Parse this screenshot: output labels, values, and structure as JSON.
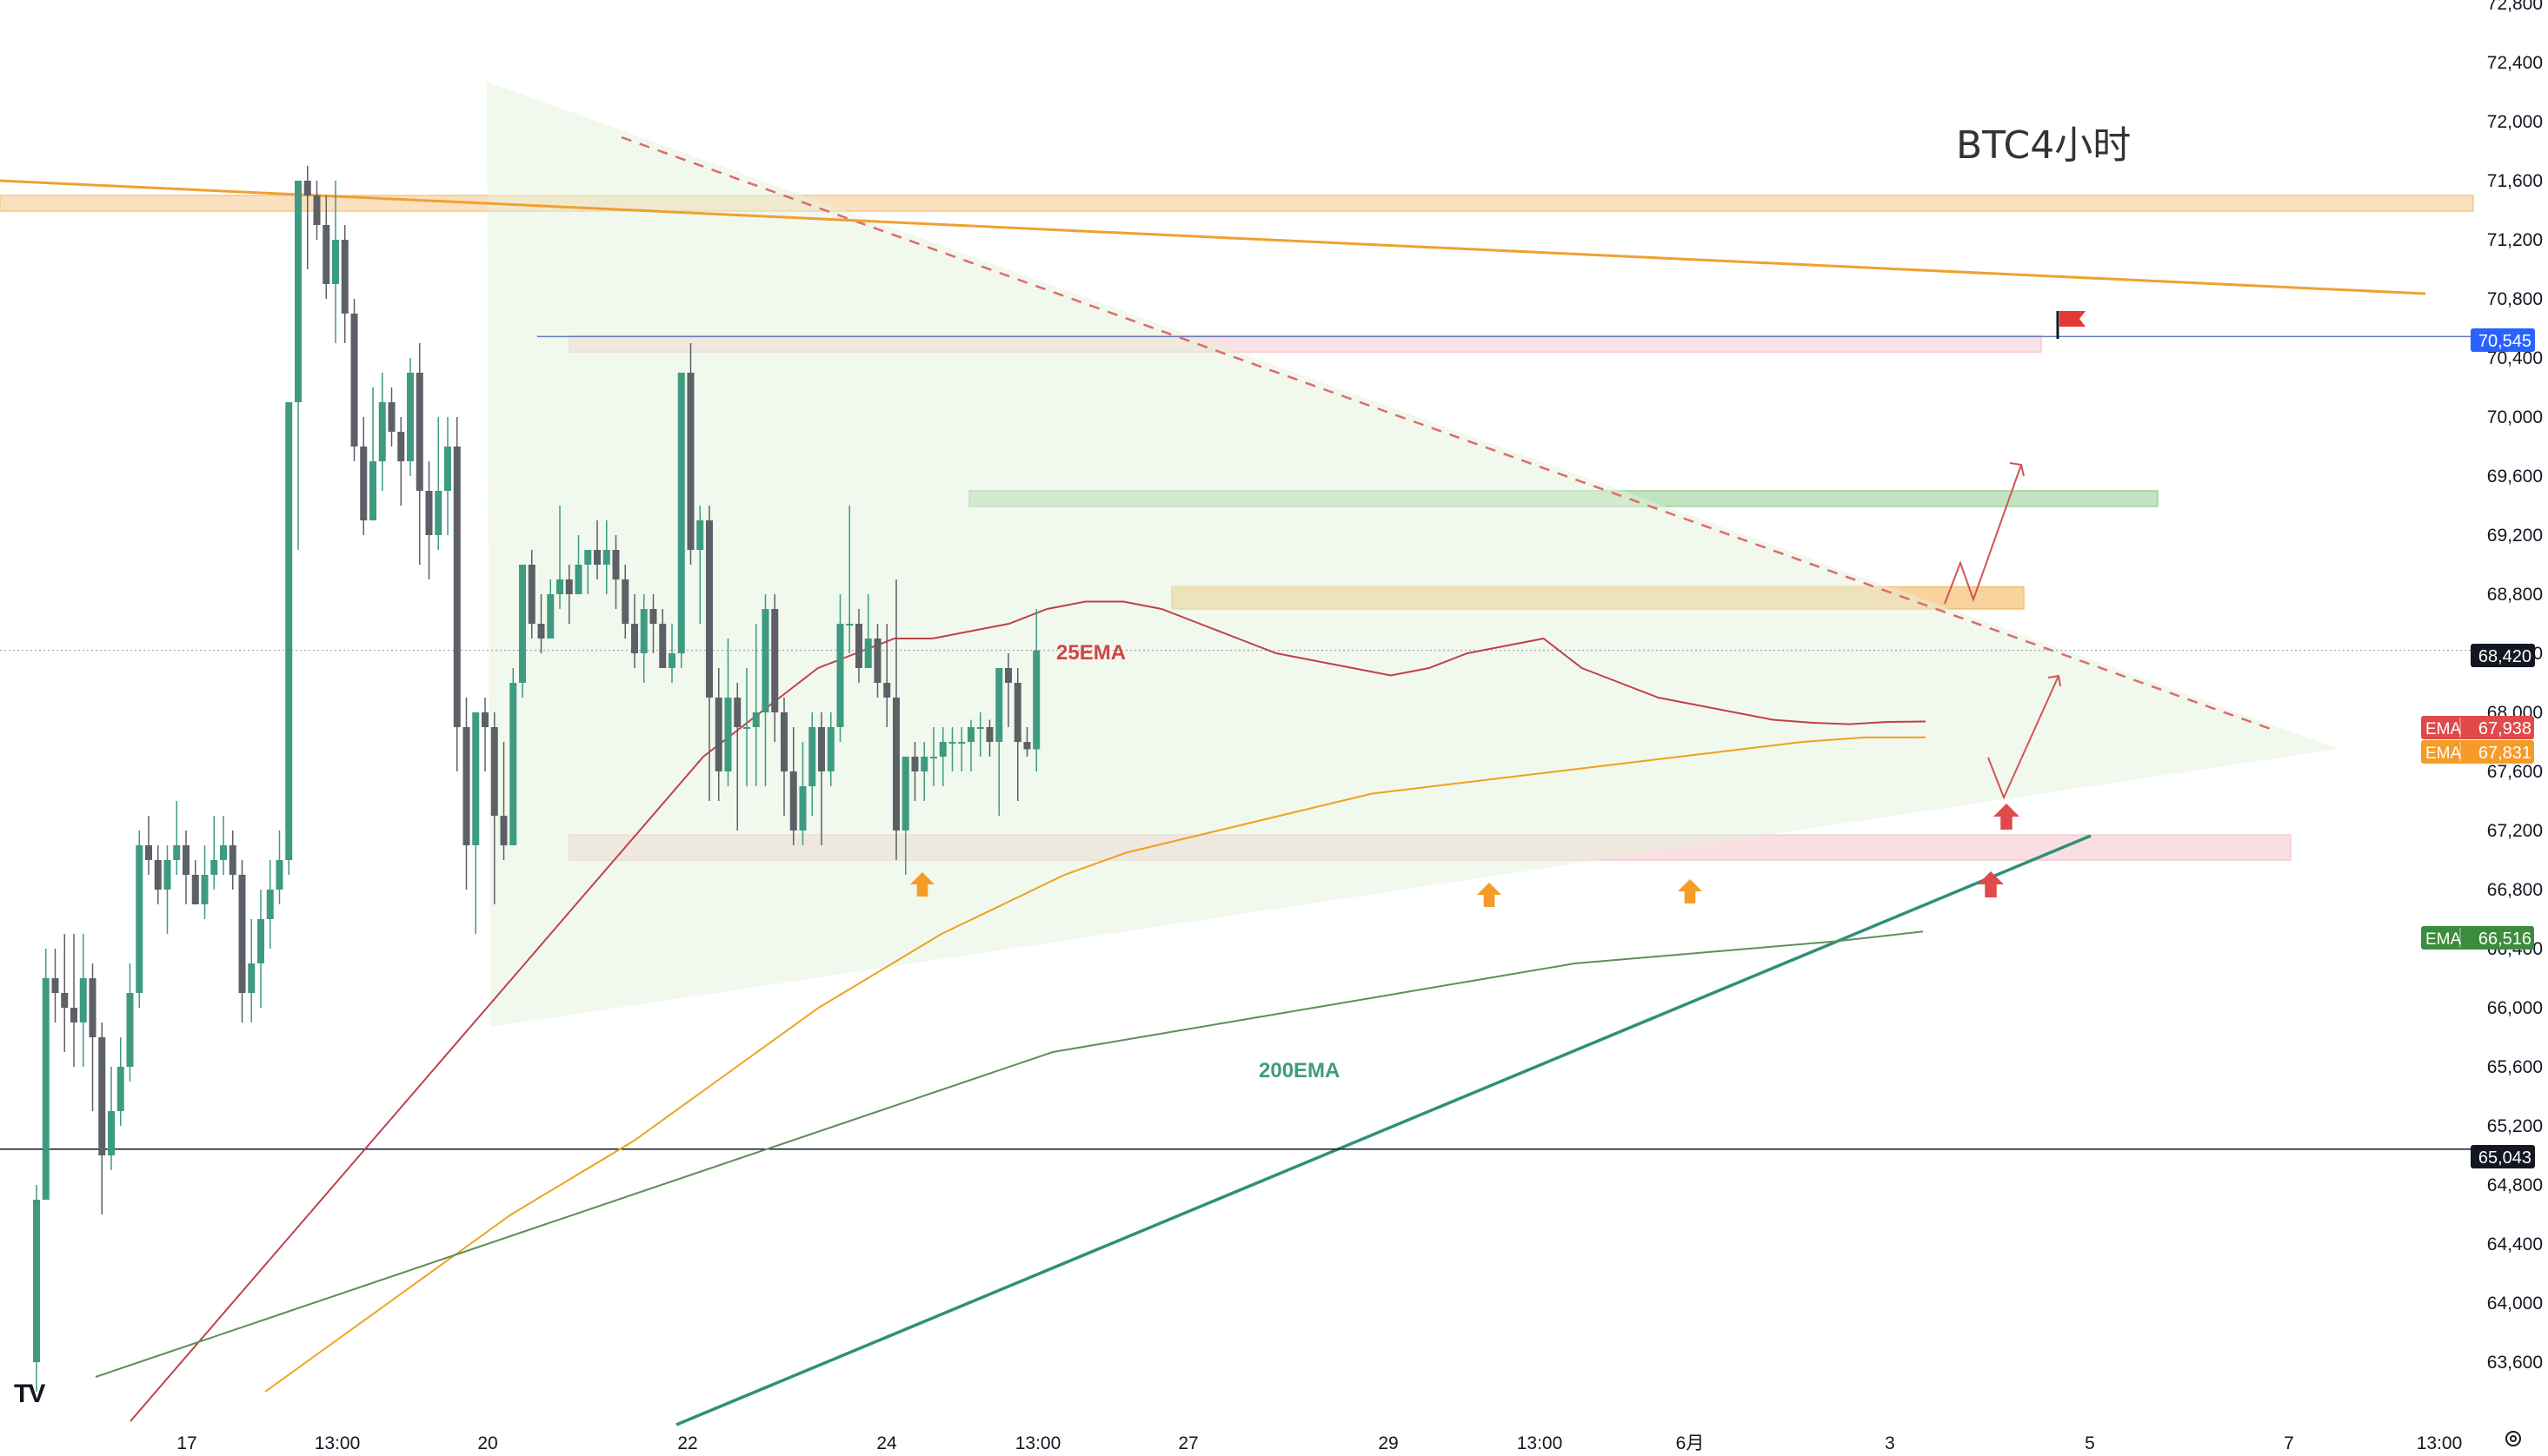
{
  "title": "BTC4小时",
  "colors": {
    "up": "#3e9b82",
    "down": "#5d6066",
    "ema25": "#c0404a",
    "ema_mid": "#f0a020",
    "ema200": "#5e8f5a",
    "teal_trend": "#2e8f7a",
    "orange_trend": "#f0a030",
    "badge_blue": "#2962ff",
    "badge_black": "#131722",
    "badge_red": "#e04a4a",
    "badge_orange": "#f59b27",
    "badge_green": "#3d8b3d"
  },
  "annotations": {
    "ema25_label": "25EMA",
    "ema200_label": "200EMA"
  },
  "logo_text": "TV",
  "price_axis": {
    "labels": [
      "72,800",
      "72,400",
      "72,000",
      "71,600",
      "71,200",
      "70,800",
      "70,400",
      "70,000",
      "69,600",
      "69,200",
      "68,800",
      "68,400",
      "68,000",
      "67,600",
      "67,200",
      "66,800",
      "66,400",
      "66,000",
      "65,600",
      "65,200",
      "64,800",
      "64,400",
      "64,000",
      "63,600"
    ]
  },
  "time_axis": {
    "labels": [
      "17",
      "13:00",
      "20",
      "22",
      "24",
      "13:00",
      "27",
      "29",
      "13:00",
      "6月",
      "3",
      "5",
      "7",
      "13:00"
    ]
  },
  "price_badges": [
    {
      "key": "alert",
      "label": "",
      "value": "70,545",
      "color": "#2962ff"
    },
    {
      "key": "last",
      "label": "",
      "value": "68,420",
      "color": "#131722"
    },
    {
      "key": "ema25",
      "label": "EMA",
      "value": "67,938",
      "color": "#e04a4a"
    },
    {
      "key": "ema_mid",
      "label": "EMA",
      "value": "67,831",
      "color": "#f59b27"
    },
    {
      "key": "ema200",
      "label": "EMA",
      "value": "66,516",
      "color": "#3d8b3d"
    },
    {
      "key": "level",
      "label": "",
      "value": "65,043",
      "color": "#131722"
    }
  ],
  "chart_data": {
    "type": "candlestick",
    "title": "BTC4小时",
    "ylim": [
      63400,
      72800
    ],
    "series": [
      {
        "name": "25EMA",
        "values": [
          63200,
          63500,
          63800,
          64100,
          64400,
          64700,
          65000,
          65300,
          65600,
          65900,
          66200,
          66500,
          66800,
          67100,
          67400,
          67700,
          67900,
          68100,
          68300,
          68400,
          68500,
          68500,
          68550,
          68600,
          68700,
          68750,
          68750,
          68700,
          68600,
          68500,
          68400,
          68350,
          68300,
          68250,
          68300,
          68400,
          68450,
          68500,
          68300,
          68200,
          68100,
          68050,
          68000,
          67950,
          67930,
          67920,
          67935,
          67938
        ]
      },
      {
        "name": "EMA",
        "values": [
          63400,
          63700,
          64000,
          64300,
          64600,
          64850,
          65100,
          65400,
          65700,
          66000,
          66250,
          66500,
          66700,
          66900,
          67050,
          67150,
          67250,
          67350,
          67450,
          67500,
          67550,
          67600,
          67650,
          67700,
          67750,
          67800,
          67830,
          67831
        ]
      },
      {
        "name": "200EMA",
        "values": [
          63500,
          63700,
          63900,
          64100,
          64300,
          64500,
          64700,
          64900,
          65100,
          65300,
          65500,
          65700,
          65800,
          65900,
          66000,
          66100,
          66200,
          66300,
          66350,
          66400,
          66450,
          66516
        ]
      }
    ],
    "candles": [
      [
        63600,
        64700,
        63400,
        64800
      ],
      [
        64700,
        66200,
        64700,
        66400
      ],
      [
        66200,
        66100,
        65900,
        66400
      ],
      [
        66100,
        66000,
        65700,
        66500
      ],
      [
        66000,
        65900,
        65600,
        66500
      ],
      [
        65900,
        66200,
        65600,
        66500
      ],
      [
        66200,
        65800,
        65300,
        66300
      ],
      [
        65800,
        65000,
        64600,
        65900
      ],
      [
        65000,
        65300,
        64900,
        65600
      ],
      [
        65300,
        65600,
        65200,
        65800
      ],
      [
        65600,
        66100,
        65500,
        66300
      ],
      [
        66100,
        67100,
        66000,
        67200
      ],
      [
        67100,
        67000,
        66900,
        67300
      ],
      [
        67000,
        66800,
        66700,
        67100
      ],
      [
        66800,
        67000,
        66500,
        67100
      ],
      [
        67000,
        67100,
        66900,
        67400
      ],
      [
        67100,
        66900,
        66700,
        67200
      ],
      [
        66900,
        66700,
        66700,
        67000
      ],
      [
        66700,
        66900,
        66600,
        67100
      ],
      [
        66900,
        67000,
        66800,
        67300
      ],
      [
        67000,
        67100,
        66900,
        67300
      ],
      [
        67100,
        66900,
        66800,
        67200
      ],
      [
        66900,
        66100,
        65900,
        67000
      ],
      [
        66100,
        66300,
        65900,
        66600
      ],
      [
        66300,
        66600,
        66000,
        66800
      ],
      [
        66600,
        66800,
        66400,
        67000
      ],
      [
        66800,
        67000,
        66700,
        67200
      ],
      [
        67000,
        70100,
        66900,
        70100
      ],
      [
        70100,
        71600,
        69100,
        71600
      ],
      [
        71600,
        71500,
        71000,
        71700
      ],
      [
        71500,
        71300,
        71200,
        71600
      ],
      [
        71300,
        70900,
        70800,
        71500
      ],
      [
        70900,
        71200,
        70500,
        71600
      ],
      [
        71200,
        70700,
        70500,
        71300
      ],
      [
        70700,
        69800,
        69700,
        70800
      ],
      [
        69800,
        69300,
        69200,
        70000
      ],
      [
        69300,
        69700,
        69300,
        70200
      ],
      [
        69700,
        70100,
        69500,
        70300
      ],
      [
        70100,
        69900,
        69800,
        70200
      ],
      [
        69900,
        69700,
        69400,
        70000
      ],
      [
        69700,
        70300,
        69600,
        70400
      ],
      [
        70300,
        69500,
        69000,
        70500
      ],
      [
        69500,
        69200,
        68900,
        69700
      ],
      [
        69200,
        69500,
        69100,
        70000
      ],
      [
        69500,
        69800,
        69200,
        70000
      ],
      [
        69800,
        67900,
        67600,
        70000
      ],
      [
        67900,
        67100,
        66800,
        68100
      ],
      [
        67100,
        68000,
        66500,
        68000
      ],
      [
        68000,
        67900,
        67600,
        68100
      ],
      [
        67900,
        67300,
        66700,
        68000
      ],
      [
        67300,
        67100,
        67000,
        67800
      ],
      [
        67100,
        68200,
        67100,
        68300
      ],
      [
        68200,
        69000,
        68100,
        69000
      ],
      [
        69000,
        68600,
        68500,
        69100
      ],
      [
        68600,
        68500,
        68400,
        68800
      ],
      [
        68500,
        68800,
        68500,
        68900
      ],
      [
        68800,
        68900,
        68700,
        69400
      ],
      [
        68900,
        68800,
        68600,
        69000
      ],
      [
        68800,
        69000,
        68800,
        69200
      ],
      [
        69000,
        69100,
        68800,
        69100
      ],
      [
        69100,
        69000,
        68900,
        69300
      ],
      [
        69000,
        69100,
        68800,
        69300
      ],
      [
        69100,
        68900,
        68700,
        69200
      ],
      [
        68900,
        68600,
        68500,
        69000
      ],
      [
        68600,
        68400,
        68300,
        68800
      ],
      [
        68400,
        68700,
        68200,
        68800
      ],
      [
        68700,
        68600,
        68400,
        68800
      ],
      [
        68600,
        68300,
        68300,
        68700
      ],
      [
        68300,
        68400,
        68200,
        68600
      ],
      [
        68400,
        70300,
        68300,
        70300
      ],
      [
        70300,
        69100,
        69000,
        70500
      ],
      [
        69100,
        69300,
        68600,
        69400
      ],
      [
        69300,
        68100,
        67400,
        69400
      ],
      [
        68100,
        67600,
        67400,
        68300
      ],
      [
        67600,
        68100,
        67500,
        68500
      ],
      [
        68100,
        67900,
        67200,
        68200
      ],
      [
        67900,
        67900,
        67500,
        68300
      ],
      [
        67900,
        68000,
        67500,
        68600
      ],
      [
        68000,
        68700,
        67500,
        68800
      ],
      [
        68700,
        68000,
        67800,
        68800
      ],
      [
        68000,
        67600,
        67300,
        68100
      ],
      [
        67600,
        67200,
        67100,
        67900
      ],
      [
        67200,
        67500,
        67100,
        67800
      ],
      [
        67500,
        67900,
        67300,
        68000
      ],
      [
        67900,
        67600,
        67100,
        68000
      ],
      [
        67600,
        67900,
        67500,
        68000
      ],
      [
        67900,
        68600,
        67800,
        68800
      ],
      [
        68600,
        68600,
        68400,
        69400
      ],
      [
        68600,
        68300,
        68200,
        68700
      ],
      [
        68300,
        68500,
        68300,
        68800
      ],
      [
        68500,
        68200,
        68100,
        68600
      ],
      [
        68200,
        68100,
        67900,
        68600
      ],
      [
        68100,
        67200,
        67000,
        68900
      ],
      [
        67200,
        67700,
        66900,
        67700
      ],
      [
        67700,
        67600,
        67400,
        67800
      ],
      [
        67600,
        67700,
        67400,
        67800
      ],
      [
        67700,
        67700,
        67500,
        67900
      ],
      [
        67700,
        67800,
        67500,
        67900
      ],
      [
        67800,
        67800,
        67600,
        67900
      ],
      [
        67800,
        67800,
        67600,
        67900
      ],
      [
        67800,
        67900,
        67600,
        67950
      ],
      [
        67900,
        67900,
        67700,
        68000
      ],
      [
        67900,
        67800,
        67700,
        67950
      ],
      [
        67800,
        68300,
        67300,
        68300
      ],
      [
        68300,
        68200,
        67900,
        68400
      ],
      [
        68200,
        67800,
        67400,
        68300
      ],
      [
        67800,
        67750,
        67700,
        67900
      ],
      [
        67750,
        68420,
        67600,
        68700
      ]
    ],
    "levels": [
      70545,
      68420,
      65043
    ],
    "zones": [
      {
        "name": "resistance-top",
        "from": 71400,
        "to": 71500
      },
      {
        "name": "pink-upper",
        "from": 70440,
        "to": 70550
      },
      {
        "name": "green",
        "from": 69400,
        "to": 69500
      },
      {
        "name": "orange-mid",
        "from": 68700,
        "to": 68850
      },
      {
        "name": "pink-lower",
        "from": 67000,
        "to": 67170
      }
    ]
  }
}
